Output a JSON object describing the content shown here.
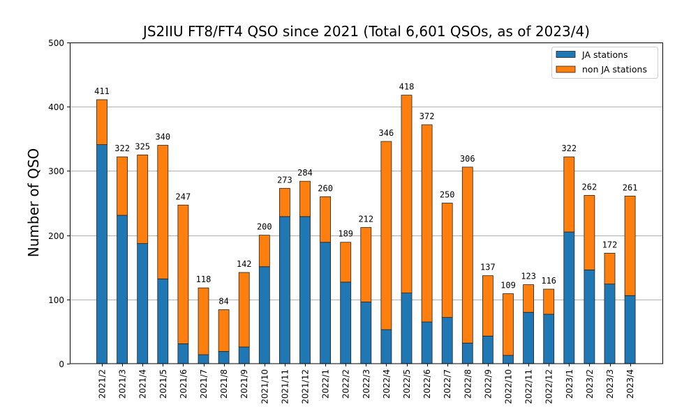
{
  "chart_data": {
    "type": "bar",
    "stacked": true,
    "title": "JS2IIU FT8/FT4 QSO since 2021 (Total 6,601 QSOs, as of 2023/4)",
    "xlabel": "",
    "ylabel": "Number of QSO",
    "ylim": [
      0,
      500
    ],
    "yticks": [
      0,
      100,
      200,
      300,
      400,
      500
    ],
    "grid": "y",
    "legend_position": "top-right",
    "categories": [
      "2021/2",
      "2021/3",
      "2021/4",
      "2021/5",
      "2021/6",
      "2021/7",
      "2021/8",
      "2021/9",
      "2021/10",
      "2021/11",
      "2021/12",
      "2022/1",
      "2022/2",
      "2022/3",
      "2022/4",
      "2022/5",
      "2022/6",
      "2022/7",
      "2022/8",
      "2022/9",
      "2022/10",
      "2022/11",
      "2022/12",
      "2023/1",
      "2023/2",
      "2023/3",
      "2023/4"
    ],
    "series": [
      {
        "name": "JA stations",
        "color": "#1f77b4",
        "values": [
          341,
          231,
          187,
          132,
          31,
          14,
          19,
          26,
          151,
          229,
          229,
          189,
          127,
          96,
          53,
          110,
          65,
          72,
          32,
          43,
          13,
          80,
          77,
          205,
          146,
          124,
          106
        ]
      },
      {
        "name": "non JA stations",
        "color": "#ff7f0e",
        "values": [
          70,
          91,
          138,
          208,
          216,
          104,
          65,
          116,
          49,
          44,
          55,
          71,
          62,
          116,
          293,
          308,
          307,
          178,
          274,
          94,
          96,
          43,
          39,
          117,
          116,
          48,
          155
        ]
      }
    ],
    "totals": [
      411,
      322,
      325,
      340,
      247,
      118,
      84,
      142,
      200,
      273,
      284,
      260,
      189,
      212,
      346,
      418,
      372,
      250,
      306,
      137,
      109,
      123,
      116,
      322,
      262,
      172,
      261
    ]
  }
}
